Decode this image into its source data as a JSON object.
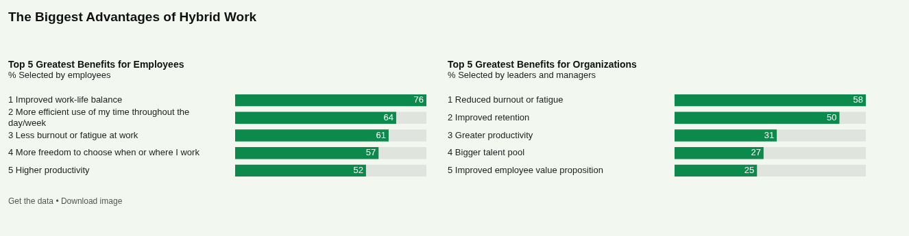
{
  "chart_data": [
    {
      "type": "bar",
      "orientation": "horizontal",
      "title": "Top 5 Greatest Benefits for Employees",
      "subtitle": "% Selected by employees",
      "categories": [
        "1 Improved work-life balance",
        "2 More efficient use of my time throughout the day/week",
        "3 Less burnout or fatigue at work",
        "4 More freedom to choose when or where I work",
        "5 Higher productivity"
      ],
      "values": [
        76,
        64,
        61,
        57,
        52
      ],
      "color": "#0b8a4c",
      "xlim": [
        0,
        76
      ],
      "data_labels": true,
      "tick_labels": "y"
    },
    {
      "type": "bar",
      "orientation": "horizontal",
      "title": "Top 5 Greatest Benefits for Organizations",
      "subtitle": "% Selected by leaders and managers",
      "categories": [
        "1 Reduced burnout or fatigue",
        "2 Improved retention",
        "3 Greater productivity",
        "4 Bigger talent pool",
        "5 Improved employee value proposition"
      ],
      "values": [
        58,
        50,
        31,
        27,
        25
      ],
      "color": "#0b8a4c",
      "xlim": [
        0,
        58
      ],
      "data_labels": true,
      "tick_labels": "y",
      "annotations": [
        "The Biggest Advantages of Hybrid Work",
        "Get the data • Download image"
      ]
    }
  ]
}
